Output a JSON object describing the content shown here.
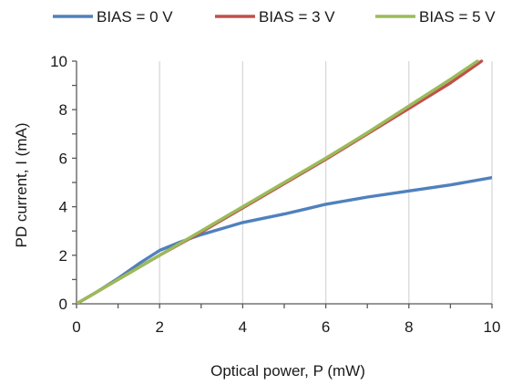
{
  "chart_data": {
    "type": "line",
    "xlabel": "Optical power, P (mW)",
    "ylabel": "PD current, I (mA)",
    "xlim": [
      0,
      10
    ],
    "ylim": [
      0,
      10
    ],
    "xticks": [
      0,
      2,
      4,
      6,
      8,
      10
    ],
    "yticks": [
      0,
      2,
      4,
      6,
      8,
      10
    ],
    "xticks_labels": [
      "0",
      "2",
      "4",
      "6",
      "8",
      "10"
    ],
    "yticks_labels": [
      "0",
      "2",
      "4",
      "6",
      "8",
      "10"
    ],
    "grid": "vertical",
    "legend_position": "top",
    "series": [
      {
        "name": "BIAS = 0 V",
        "color": "#4f81bd",
        "x": [
          0,
          0.5,
          1,
          1.5,
          2,
          2.5,
          3,
          4,
          5,
          5.5,
          6,
          7,
          8,
          9,
          10
        ],
        "y": [
          0,
          0.5,
          1.05,
          1.65,
          2.2,
          2.55,
          2.85,
          3.35,
          3.7,
          3.9,
          4.1,
          4.4,
          4.65,
          4.9,
          5.2
        ]
      },
      {
        "name": "BIAS = 3 V",
        "color": "#c0504d",
        "x": [
          0,
          1,
          2,
          3,
          4,
          5,
          6,
          7,
          8,
          9,
          9.75
        ],
        "y": [
          0,
          1.0,
          2.0,
          2.95,
          3.95,
          4.95,
          5.95,
          7.0,
          8.05,
          9.1,
          10.0
        ]
      },
      {
        "name": "BIAS = 5 V",
        "color": "#9bbb59",
        "x": [
          0,
          1,
          2,
          3,
          4,
          5,
          6,
          7,
          8,
          9,
          9.65
        ],
        "y": [
          0,
          1.0,
          2.0,
          3.0,
          4.0,
          5.0,
          6.0,
          7.05,
          8.15,
          9.25,
          10.0
        ]
      }
    ]
  }
}
